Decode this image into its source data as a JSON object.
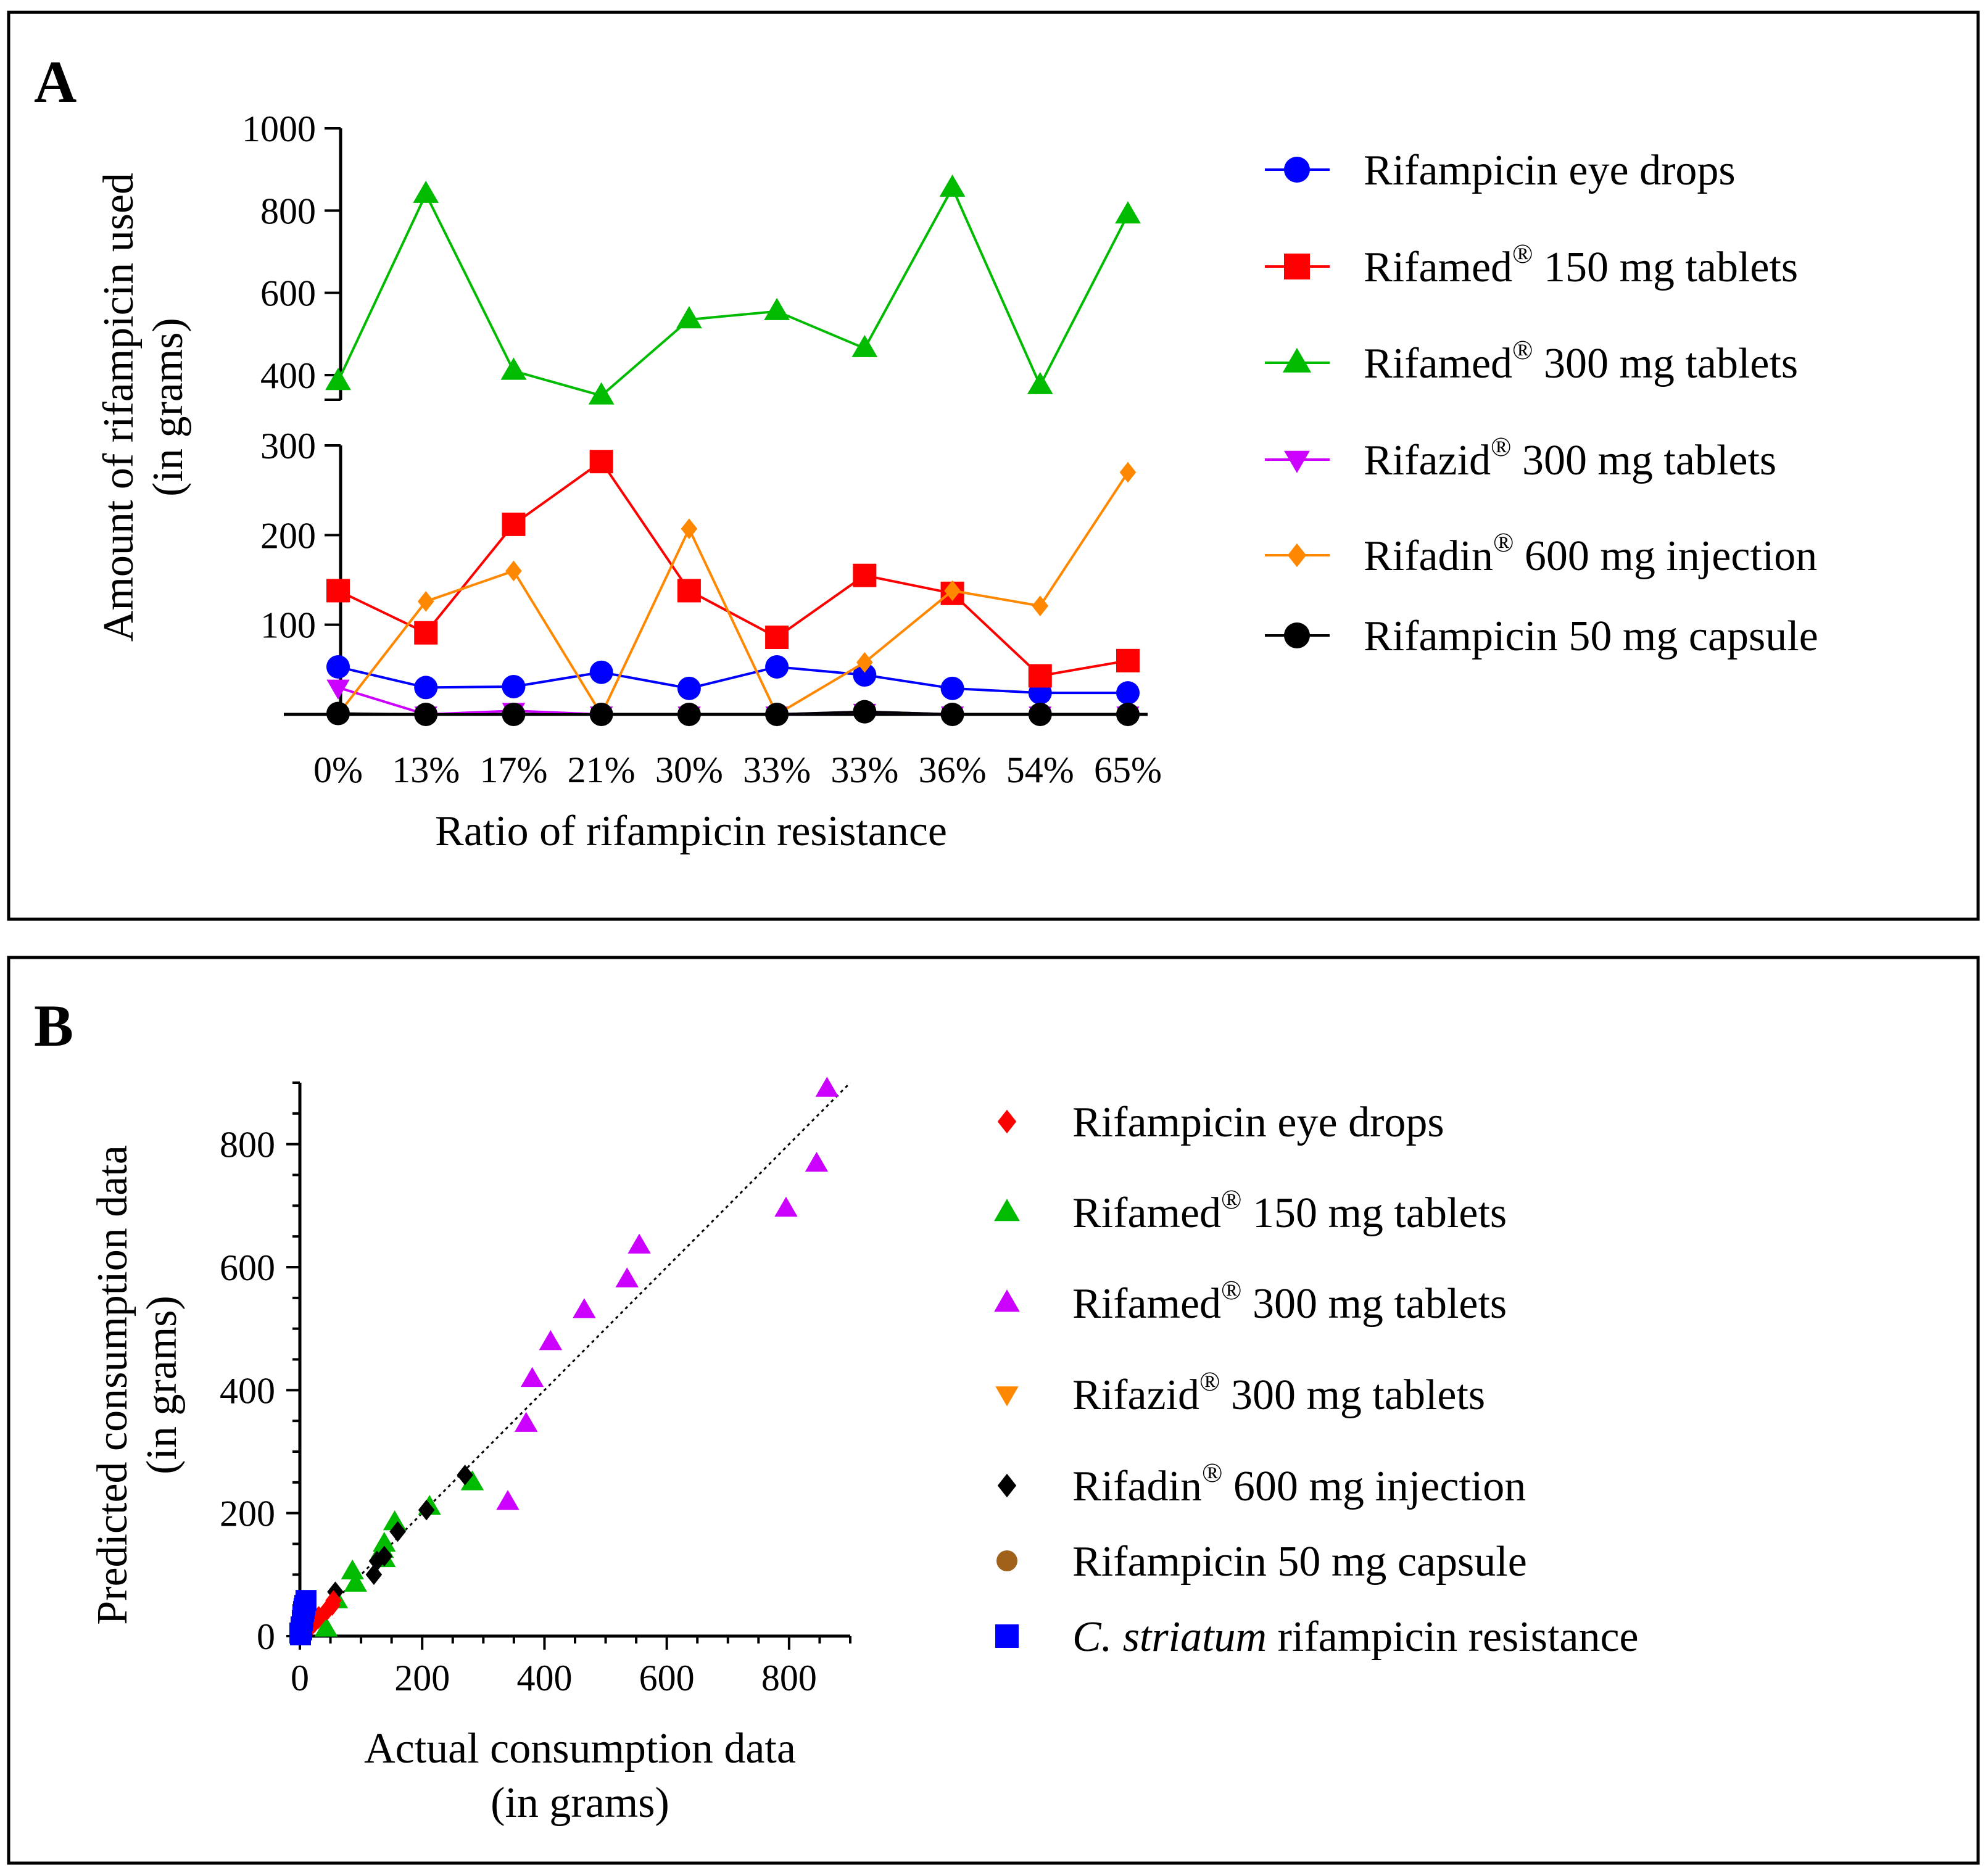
{
  "chart_data": [
    {
      "panel": "A",
      "type": "line",
      "title": "",
      "xlabel": "Ratio of rifampicin resistance",
      "ylabel": [
        "Amount of rifampicin used",
        "(in grams)"
      ],
      "categories": [
        "0%",
        "13%",
        "17%",
        "21%",
        "30%",
        "33%",
        "33%",
        "36%",
        "54%",
        "65%"
      ],
      "y_axis": {
        "broken": true,
        "lower_segment": {
          "range": [
            0,
            300
          ],
          "ticks": [
            "100",
            "200",
            "300"
          ]
        },
        "upper_segment": {
          "range": [
            340,
            1000
          ],
          "ticks": [
            "400",
            "600",
            "800",
            "1000"
          ]
        }
      },
      "series": [
        {
          "name": "Rifampicin eye drops",
          "registered": false,
          "color": "#0000ff",
          "marker": "circle",
          "values": [
            53,
            30,
            31,
            47,
            29,
            53,
            44,
            29,
            24,
            24
          ]
        },
        {
          "name": "Rifamed",
          "suffix": " 150 mg tablets",
          "registered": true,
          "color": "#ff0000",
          "marker": "square",
          "values": [
            138,
            91,
            212,
            282,
            138,
            86,
            155,
            135,
            43,
            60
          ]
        },
        {
          "name": "Rifamed",
          "suffix": " 300 mg tablets",
          "registered": true,
          "color": "#00bb00",
          "marker": "triangle-up",
          "values": [
            385,
            840,
            410,
            350,
            535,
            555,
            465,
            855,
            375,
            790
          ]
        },
        {
          "name": "Rifazid",
          "suffix": " 300 mg tablets",
          "registered": true,
          "color": "#cc00ff",
          "marker": "triangle-down",
          "values": [
            30,
            0,
            4,
            0,
            0,
            0,
            3,
            0,
            0,
            0
          ]
        },
        {
          "name": "Rifadin",
          "suffix": " 600 mg injection",
          "registered": true,
          "color": "#ff8800",
          "marker": "diamond",
          "values": [
            0,
            126,
            160,
            0,
            207,
            0,
            58,
            138,
            121,
            270
          ]
        },
        {
          "name": "Rifampicin 50 mg capsule",
          "registered": false,
          "color": "#000000",
          "marker": "circle",
          "values": [
            1,
            0,
            0,
            0,
            0,
            0,
            3,
            0,
            0,
            0
          ]
        }
      ]
    },
    {
      "panel": "B",
      "type": "scatter",
      "title": "",
      "xlabel": [
        "Actual consumption data",
        "(in grams)"
      ],
      "ylabel": [
        "Predicted consumption data",
        "(in grams)"
      ],
      "xlim": [
        0,
        900
      ],
      "ylim": [
        0,
        900
      ],
      "x_ticks": [
        "0",
        "200",
        "400",
        "600",
        "800"
      ],
      "y_ticks": [
        "0",
        "200",
        "400",
        "600",
        "800"
      ],
      "reference_line": {
        "style": "dotted",
        "from": [
          0,
          0
        ],
        "to": [
          900,
          900
        ]
      },
      "series": [
        {
          "name": "Rifampicin eye drops",
          "registered": false,
          "italic_prefix": "",
          "color": "#ff0000",
          "marker": "diamond",
          "points": [
            [
              53,
              50
            ],
            [
              30,
              28
            ],
            [
              31,
              32
            ],
            [
              47,
              45
            ],
            [
              29,
              30
            ],
            [
              24,
              22
            ],
            [
              44,
              42
            ],
            [
              24,
              26
            ],
            [
              55,
              58
            ],
            [
              20,
              18
            ]
          ]
        },
        {
          "name": "Rifamed",
          "suffix": " 150 mg tablets",
          "registered": true,
          "italic_prefix": "",
          "color": "#00bb00",
          "marker": "triangle-up",
          "points": [
            [
              138,
              125
            ],
            [
              91,
              85
            ],
            [
              212,
              210
            ],
            [
              282,
              250
            ],
            [
              138,
              150
            ],
            [
              86,
              105
            ],
            [
              155,
              185
            ],
            [
              135,
              140
            ],
            [
              43,
              12
            ],
            [
              60,
              58
            ]
          ]
        },
        {
          "name": "Rifamed",
          "suffix": " 300 mg tablets",
          "registered": true,
          "italic_prefix": "",
          "color": "#cc00ff",
          "marker": "triangle-up",
          "points": [
            [
              340,
              218
            ],
            [
              370,
              345
            ],
            [
              380,
              418
            ],
            [
              410,
              478
            ],
            [
              465,
              530
            ],
            [
              535,
              580
            ],
            [
              555,
              635
            ],
            [
              795,
              695
            ],
            [
              845,
              768
            ],
            [
              862,
              890
            ]
          ]
        },
        {
          "name": "Rifazid",
          "suffix": " 300 mg tablets",
          "registered": true,
          "italic_prefix": "",
          "color": "#ff8800",
          "marker": "triangle-down",
          "points": []
        },
        {
          "name": "Rifadin",
          "suffix": " 600 mg injection",
          "registered": true,
          "italic_prefix": "",
          "color": "#000000",
          "marker": "diamond",
          "points": [
            [
              270,
              262
            ],
            [
              207,
              205
            ],
            [
              160,
              170
            ],
            [
              138,
              130
            ],
            [
              126,
              122
            ],
            [
              121,
              100
            ],
            [
              58,
              72
            ],
            [
              0,
              5
            ]
          ]
        },
        {
          "name": "Rifampicin 50 mg capsule",
          "registered": false,
          "italic_prefix": "",
          "color": "#a0621a",
          "marker": "circle",
          "points": []
        },
        {
          "name": " rifampicin resistance",
          "registered": false,
          "italic_prefix": "C. striatum",
          "color": "#0000ff",
          "marker": "square",
          "points": [
            [
              0,
              5
            ],
            [
              2,
              15
            ],
            [
              4,
              25
            ],
            [
              5,
              32
            ],
            [
              6,
              40
            ],
            [
              8,
              50
            ],
            [
              10,
              58
            ],
            [
              3,
              10
            ],
            [
              1,
              2
            ],
            [
              7,
              45
            ]
          ]
        }
      ]
    }
  ],
  "registered_mark": "®"
}
